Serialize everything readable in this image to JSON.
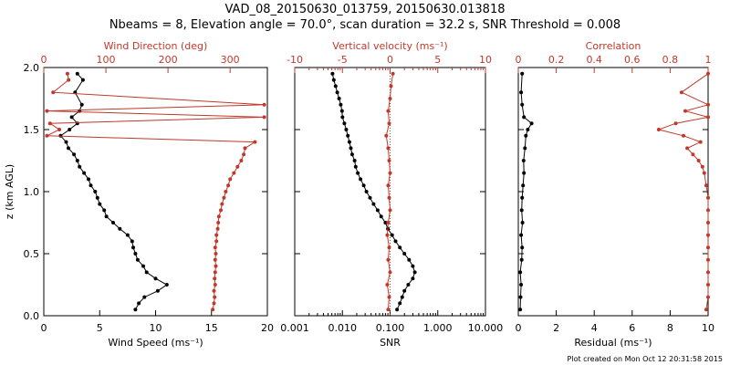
{
  "title": "VAD_08_20150630_013759, 20150630.013818",
  "subtitle": "Nbeams = 8, Elevation angle = 70.0°, scan duration = 32.2 s, SNR Threshold = 0.008",
  "footer": "Plot created on Mon Oct 12 20:31:58 2015",
  "colors": {
    "primary": "#000000",
    "secondary": "#c0392b"
  },
  "chart_data": [
    {
      "type": "line",
      "panel": "wind",
      "ylabel": "z (km AGL)",
      "ylim": [
        0,
        2.0
      ],
      "yticks": [
        0.0,
        0.5,
        1.0,
        1.5,
        2.0
      ],
      "ytick_labels": [
        "0.0",
        "0.5",
        "1.0",
        "1.5",
        "2.0"
      ],
      "xlabel_bottom": "Wind Speed (ms⁻¹)",
      "xlim_bottom": [
        0,
        20
      ],
      "xticks_bottom": [
        0,
        5,
        10,
        15,
        20
      ],
      "xlabel_top": "Wind Direction (deg)",
      "xlim_top": [
        0,
        360
      ],
      "xticks_top": [
        0,
        100,
        200,
        300
      ],
      "series": [
        {
          "name": "Wind Speed",
          "axis": "bottom",
          "color": "#000000",
          "z": [
            0.05,
            0.1,
            0.15,
            0.2,
            0.25,
            0.3,
            0.35,
            0.4,
            0.45,
            0.5,
            0.55,
            0.6,
            0.65,
            0.7,
            0.75,
            0.8,
            0.85,
            0.9,
            0.95,
            1.0,
            1.05,
            1.1,
            1.15,
            1.2,
            1.25,
            1.3,
            1.35,
            1.4,
            1.45,
            1.5,
            1.55,
            1.6,
            1.65,
            1.7,
            1.8,
            1.9,
            1.95
          ],
          "values": [
            8.2,
            8.5,
            9.0,
            10.2,
            11.0,
            10.0,
            9.2,
            8.9,
            8.4,
            8.2,
            8.0,
            7.9,
            7.5,
            6.8,
            6.2,
            5.6,
            5.4,
            5.0,
            4.8,
            4.6,
            4.2,
            4.0,
            3.6,
            3.2,
            3.0,
            2.7,
            2.2,
            2.0,
            1.5,
            2.3,
            3.0,
            2.5,
            3.2,
            3.4,
            2.8,
            3.5,
            3.0
          ]
        },
        {
          "name": "Wind Direction",
          "axis": "top",
          "color": "#c0392b",
          "z": [
            0.05,
            0.1,
            0.15,
            0.2,
            0.25,
            0.3,
            0.35,
            0.4,
            0.45,
            0.5,
            0.55,
            0.6,
            0.65,
            0.7,
            0.75,
            0.8,
            0.85,
            0.9,
            0.95,
            1.0,
            1.05,
            1.1,
            1.15,
            1.2,
            1.25,
            1.3,
            1.35,
            1.4,
            1.45,
            1.5,
            1.55,
            1.6,
            1.65,
            1.7,
            1.8,
            1.9,
            1.95
          ],
          "values": [
            272,
            274,
            275,
            274,
            276,
            275,
            276,
            277,
            276,
            277,
            276,
            278,
            278,
            280,
            281,
            282,
            285,
            287,
            290,
            293,
            297,
            300,
            306,
            312,
            318,
            322,
            324,
            340,
            5,
            25,
            10,
            355,
            5,
            355,
            15,
            40,
            38
          ]
        }
      ]
    },
    {
      "type": "line",
      "panel": "snr",
      "ylim": [
        0,
        2.0
      ],
      "xlabel_bottom": "SNR",
      "xscale_bottom": "log",
      "xlim_bottom": [
        0.001,
        10
      ],
      "xticks_bottom": [
        0.001,
        0.01,
        0.1,
        1,
        10
      ],
      "xtick_labels_bottom": [
        "0.001",
        "0.010",
        "0.100",
        "1.000",
        "10.000"
      ],
      "xlabel_top": "Vertical velocity (ms⁻¹)",
      "xlim_top": [
        -10,
        10
      ],
      "xticks_top": [
        -10,
        -5,
        0,
        5,
        10
      ],
      "series": [
        {
          "name": "SNR",
          "axis": "bottom",
          "color": "#000000",
          "z": [
            0.05,
            0.1,
            0.15,
            0.2,
            0.25,
            0.3,
            0.35,
            0.4,
            0.45,
            0.5,
            0.55,
            0.6,
            0.65,
            0.7,
            0.75,
            0.8,
            0.85,
            0.9,
            0.95,
            1.0,
            1.05,
            1.1,
            1.15,
            1.2,
            1.25,
            1.3,
            1.35,
            1.4,
            1.45,
            1.5,
            1.55,
            1.6,
            1.65,
            1.7,
            1.75,
            1.8,
            1.85,
            1.9,
            1.95
          ],
          "values": [
            0.14,
            0.16,
            0.18,
            0.2,
            0.24,
            0.3,
            0.33,
            0.3,
            0.25,
            0.2,
            0.16,
            0.13,
            0.11,
            0.09,
            0.08,
            0.065,
            0.055,
            0.045,
            0.038,
            0.032,
            0.028,
            0.024,
            0.021,
            0.019,
            0.018,
            0.016,
            0.015,
            0.014,
            0.013,
            0.012,
            0.011,
            0.01,
            0.0098,
            0.0092,
            0.0085,
            0.0078,
            0.0072,
            0.0066,
            0.0062
          ]
        },
        {
          "name": "Vertical velocity",
          "axis": "top",
          "color": "#c0392b",
          "z": [
            0.05,
            0.15,
            0.25,
            0.35,
            0.45,
            0.55,
            0.65,
            0.75,
            0.85,
            0.95,
            1.05,
            1.15,
            1.25,
            1.35,
            1.45,
            1.55,
            1.65,
            1.75,
            1.85,
            1.95
          ],
          "values": [
            -0.2,
            -0.1,
            -0.3,
            0.0,
            -0.2,
            -0.1,
            -0.3,
            -0.2,
            0.0,
            -0.1,
            -0.2,
            0.0,
            -0.1,
            -0.2,
            -0.4,
            -0.1,
            -0.2,
            0.0,
            0.1,
            0.3
          ]
        }
      ]
    },
    {
      "type": "line",
      "panel": "corr",
      "ylim": [
        0,
        2.0
      ],
      "xlabel_bottom": "Residual (ms⁻¹)",
      "xlim_bottom": [
        0,
        10
      ],
      "xticks_bottom": [
        0,
        2,
        4,
        6,
        8,
        10
      ],
      "xlabel_top": "Correlation",
      "xlim_top": [
        0,
        1.0
      ],
      "xticks_top": [
        0.0,
        0.2,
        0.4,
        0.6,
        0.8,
        1.0
      ],
      "series": [
        {
          "name": "Residual",
          "axis": "bottom",
          "color": "#000000",
          "z": [
            0.05,
            0.15,
            0.25,
            0.35,
            0.45,
            0.55,
            0.65,
            0.75,
            0.85,
            0.95,
            1.05,
            1.15,
            1.25,
            1.35,
            1.45,
            1.5,
            1.55,
            1.6,
            1.7,
            1.8,
            1.95
          ],
          "values": [
            0.1,
            0.12,
            0.15,
            0.1,
            0.18,
            0.2,
            0.15,
            0.22,
            0.18,
            0.2,
            0.25,
            0.3,
            0.28,
            0.35,
            0.4,
            0.5,
            0.7,
            0.3,
            0.2,
            0.15,
            0.2
          ]
        },
        {
          "name": "Correlation",
          "axis": "top",
          "color": "#c0392b",
          "z": [
            0.05,
            0.15,
            0.25,
            0.35,
            0.45,
            0.55,
            0.65,
            0.75,
            0.85,
            0.95,
            1.05,
            1.15,
            1.2,
            1.25,
            1.3,
            1.35,
            1.4,
            1.45,
            1.5,
            1.55,
            1.6,
            1.65,
            1.7,
            1.8,
            1.95
          ],
          "values": [
            0.99,
            1.0,
            1.0,
            1.0,
            1.0,
            1.0,
            1.0,
            1.0,
            1.0,
            1.0,
            0.99,
            0.98,
            0.97,
            0.95,
            0.92,
            0.89,
            0.96,
            0.87,
            0.74,
            0.83,
            1.0,
            0.88,
            1.0,
            0.86,
            1.0
          ]
        }
      ]
    }
  ]
}
